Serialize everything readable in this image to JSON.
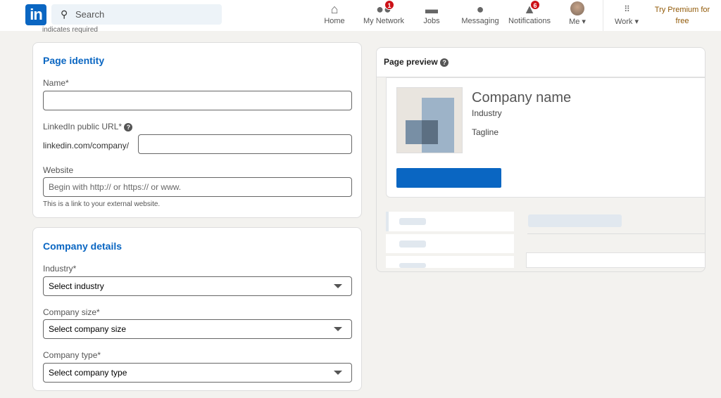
{
  "header": {
    "logo": "in",
    "search_placeholder": "Search",
    "nav": [
      {
        "label": "Home",
        "icon": "home-icon",
        "glyph": "⌂"
      },
      {
        "label": "My Network",
        "icon": "network-icon",
        "glyph": "👥",
        "badge": "1"
      },
      {
        "label": "Jobs",
        "icon": "briefcase-icon",
        "glyph": "💼"
      },
      {
        "label": "Messaging",
        "icon": "message-icon",
        "glyph": "💬"
      },
      {
        "label": "Notifications",
        "icon": "bell-icon",
        "glyph": "🔔",
        "badge": "6"
      },
      {
        "label": "Me",
        "icon": "avatar"
      },
      {
        "label": "Work",
        "icon": "grid-icon",
        "glyph": "⋮⋮⋮"
      }
    ],
    "premium": "Try Premium for free"
  },
  "required_note": "indicates required",
  "identity": {
    "title": "Page identity",
    "name_label": "Name*",
    "url_label": "LinkedIn public URL*",
    "url_prefix": "linkedin.com/company/",
    "website_label": "Website",
    "website_placeholder": "Begin with http:// or https:// or www.",
    "website_hint": "This is a link to your external website."
  },
  "details": {
    "title": "Company details",
    "industry_label": "Industry*",
    "industry_value": "Select industry",
    "size_label": "Company size*",
    "size_value": "Select company size",
    "type_label": "Company type*",
    "type_value": "Select company type"
  },
  "preview": {
    "title": "Page preview",
    "company_name": "Company name",
    "industry": "Industry",
    "tagline": "Tagline"
  },
  "colors": {
    "brand": "#0a66c2",
    "badge": "#cc1016",
    "premium": "#915907"
  }
}
